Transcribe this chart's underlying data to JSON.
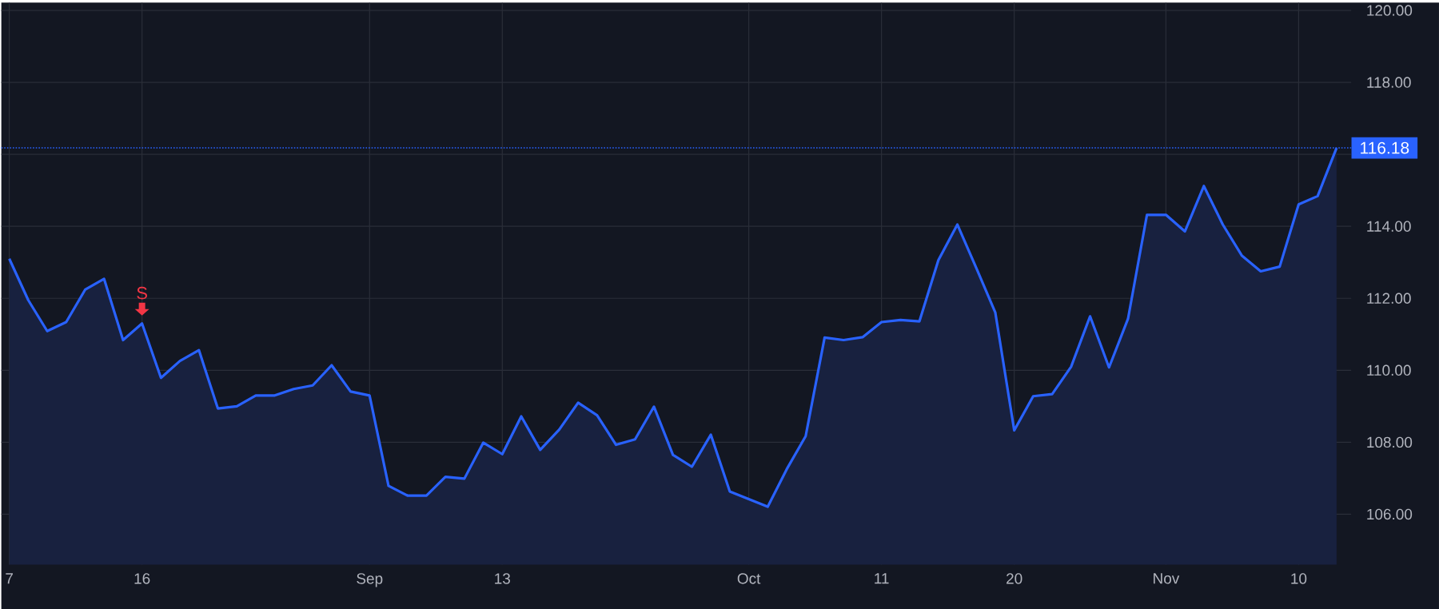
{
  "chart_data": {
    "type": "area",
    "color": "#2962ff",
    "categories": [
      "7",
      null,
      null,
      null,
      null,
      null,
      null,
      "16",
      null,
      null,
      null,
      null,
      null,
      null,
      null,
      null,
      null,
      null,
      null,
      "Sep",
      null,
      null,
      null,
      null,
      null,
      null,
      "13",
      null,
      null,
      null,
      null,
      null,
      null,
      null,
      null,
      null,
      null,
      null,
      null,
      "Oct",
      null,
      null,
      null,
      null,
      null,
      null,
      "11",
      null,
      null,
      null,
      null,
      null,
      null,
      "20",
      null,
      null,
      null,
      null,
      null,
      null,
      null,
      "Nov",
      null,
      null,
      null,
      null,
      null,
      null,
      "10",
      null,
      null
    ],
    "values": [
      113.1,
      111.95,
      111.09,
      111.34,
      112.24,
      112.54,
      110.84,
      111.3,
      109.79,
      110.26,
      110.56,
      108.94,
      109.0,
      109.3,
      109.3,
      109.48,
      109.58,
      110.14,
      109.41,
      109.3,
      106.79,
      106.52,
      106.52,
      107.04,
      106.99,
      107.99,
      107.67,
      108.72,
      107.79,
      108.35,
      109.1,
      108.75,
      107.93,
      108.08,
      108.99,
      107.65,
      107.32,
      108.21,
      106.63,
      106.42,
      106.21,
      107.25,
      108.17,
      110.91,
      110.84,
      110.92,
      111.34,
      111.4,
      111.36,
      113.06,
      114.05,
      112.84,
      111.61,
      108.33,
      109.28,
      109.34,
      110.1,
      111.5,
      110.08,
      111.43,
      114.32,
      114.32,
      113.86,
      115.12,
      114.05,
      113.19,
      112.75,
      112.88,
      114.61,
      114.84,
      116.18
    ],
    "ylim": [
      104.6,
      120.22
    ],
    "yticks": [
      {
        "value": 106,
        "label": "106.00"
      },
      {
        "value": 108,
        "label": "108.00"
      },
      {
        "value": 110,
        "label": "110.00"
      },
      {
        "value": 112,
        "label": "112.00"
      },
      {
        "value": 114,
        "label": "114.00"
      },
      {
        "value": 116,
        "label": null
      },
      {
        "value": 118,
        "label": "118.00"
      },
      {
        "value": 120,
        "label": "120.00"
      }
    ],
    "grid": true,
    "ref_lines": [
      {
        "axis": "y",
        "value": 116.18,
        "label": "116.18",
        "color": "#2962ff",
        "line_style": "dotted"
      }
    ],
    "annotations": [
      {
        "text": "S",
        "x": "16",
        "y": 111.3
      }
    ]
  }
}
